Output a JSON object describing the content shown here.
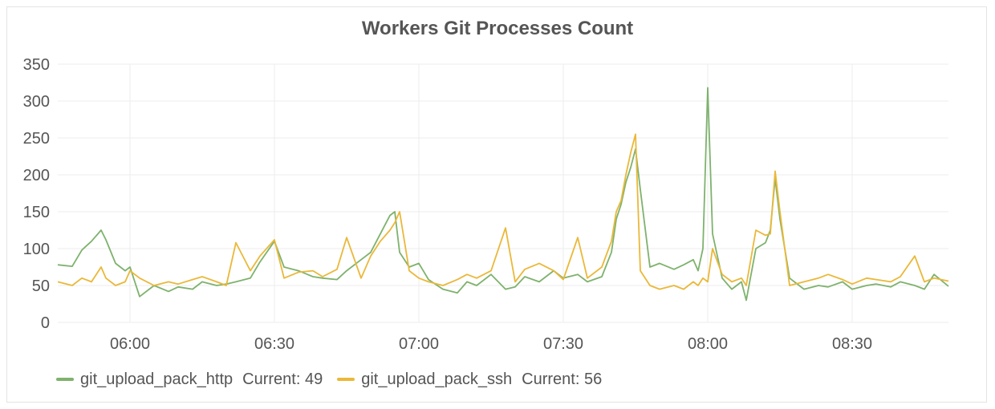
{
  "panel": {
    "title": "Workers Git Processes Count"
  },
  "legend": [
    {
      "name": "git_upload_pack_http",
      "current_label": "Current:",
      "current": "49",
      "color": "#7eb26d"
    },
    {
      "name": "git_upload_pack_ssh",
      "current_label": "Current:",
      "current": "56",
      "color": "#eab839"
    }
  ],
  "chart_data": {
    "type": "line",
    "title": "Workers Git Processes Count",
    "xlabel": "",
    "ylabel": "",
    "ylim": [
      0,
      350
    ],
    "xlim": [
      "05:45",
      "08:50"
    ],
    "yticks": [
      "0",
      "50",
      "100",
      "150",
      "200",
      "250",
      "300",
      "350"
    ],
    "xticks": [
      "06:00",
      "06:30",
      "07:00",
      "07:30",
      "08:00",
      "08:30"
    ],
    "grid": true,
    "legend_position": "bottom-left",
    "series": [
      {
        "name": "git_upload_pack_http",
        "color": "#7eb26d",
        "x": [
          "05:45",
          "05:48",
          "05:50",
          "05:52",
          "05:54",
          "05:55",
          "05:57",
          "05:59",
          "06:00",
          "06:02",
          "06:05",
          "06:08",
          "06:10",
          "06:13",
          "06:15",
          "06:18",
          "06:20",
          "06:22",
          "06:25",
          "06:27",
          "06:30",
          "06:32",
          "06:35",
          "06:38",
          "06:40",
          "06:43",
          "06:45",
          "06:48",
          "06:50",
          "06:52",
          "06:54",
          "06:55",
          "06:56",
          "06:58",
          "07:00",
          "07:02",
          "07:05",
          "07:08",
          "07:10",
          "07:12",
          "07:15",
          "07:18",
          "07:20",
          "07:22",
          "07:25",
          "07:28",
          "07:30",
          "07:33",
          "07:35",
          "07:38",
          "07:40",
          "07:41",
          "07:42",
          "07:43",
          "07:44",
          "07:45",
          "07:46",
          "07:48",
          "07:50",
          "07:53",
          "07:55",
          "07:57",
          "07:58",
          "07:59",
          "08:00",
          "08:01",
          "08:03",
          "08:05",
          "08:07",
          "08:08",
          "08:10",
          "08:12",
          "08:13",
          "08:14",
          "08:15",
          "08:17",
          "08:20",
          "08:23",
          "08:25",
          "08:28",
          "08:30",
          "08:33",
          "08:35",
          "08:38",
          "08:40",
          "08:43",
          "08:45",
          "08:47",
          "08:50"
        ],
        "values": [
          78,
          76,
          98,
          110,
          125,
          112,
          80,
          70,
          75,
          35,
          50,
          42,
          48,
          45,
          55,
          50,
          52,
          55,
          60,
          82,
          110,
          75,
          70,
          62,
          60,
          58,
          70,
          85,
          95,
          120,
          145,
          150,
          95,
          75,
          80,
          58,
          45,
          40,
          55,
          50,
          65,
          45,
          48,
          62,
          55,
          70,
          60,
          65,
          55,
          62,
          95,
          140,
          160,
          190,
          210,
          235,
          180,
          75,
          80,
          72,
          78,
          85,
          70,
          100,
          318,
          120,
          60,
          45,
          55,
          30,
          100,
          108,
          125,
          195,
          140,
          60,
          45,
          50,
          48,
          55,
          45,
          50,
          52,
          48,
          55,
          50,
          45,
          65,
          49
        ]
      },
      {
        "name": "git_upload_pack_ssh",
        "color": "#eab839",
        "x": [
          "05:45",
          "05:48",
          "05:50",
          "05:52",
          "05:54",
          "05:55",
          "05:57",
          "05:59",
          "06:00",
          "06:02",
          "06:05",
          "06:08",
          "06:10",
          "06:13",
          "06:15",
          "06:18",
          "06:20",
          "06:22",
          "06:25",
          "06:27",
          "06:30",
          "06:32",
          "06:35",
          "06:38",
          "06:40",
          "06:43",
          "06:45",
          "06:48",
          "06:50",
          "06:52",
          "06:54",
          "06:55",
          "06:56",
          "06:58",
          "07:00",
          "07:02",
          "07:05",
          "07:08",
          "07:10",
          "07:12",
          "07:15",
          "07:18",
          "07:20",
          "07:22",
          "07:25",
          "07:28",
          "07:30",
          "07:33",
          "07:35",
          "07:38",
          "07:40",
          "07:41",
          "07:42",
          "07:43",
          "07:44",
          "07:45",
          "07:46",
          "07:48",
          "07:50",
          "07:53",
          "07:55",
          "07:57",
          "07:58",
          "07:59",
          "08:00",
          "08:01",
          "08:03",
          "08:05",
          "08:07",
          "08:08",
          "08:10",
          "08:12",
          "08:13",
          "08:14",
          "08:15",
          "08:17",
          "08:20",
          "08:23",
          "08:25",
          "08:28",
          "08:30",
          "08:33",
          "08:35",
          "08:38",
          "08:40",
          "08:43",
          "08:45",
          "08:47",
          "08:50"
        ],
        "values": [
          55,
          50,
          60,
          55,
          75,
          60,
          50,
          55,
          70,
          60,
          50,
          55,
          52,
          58,
          62,
          55,
          50,
          108,
          70,
          90,
          112,
          60,
          68,
          70,
          62,
          72,
          115,
          60,
          90,
          110,
          125,
          135,
          150,
          70,
          60,
          55,
          50,
          58,
          65,
          60,
          70,
          128,
          55,
          72,
          80,
          70,
          58,
          115,
          60,
          75,
          110,
          150,
          165,
          200,
          230,
          255,
          70,
          50,
          45,
          50,
          45,
          55,
          50,
          60,
          55,
          100,
          65,
          55,
          60,
          50,
          125,
          118,
          120,
          205,
          150,
          50,
          55,
          60,
          65,
          58,
          52,
          60,
          58,
          55,
          62,
          90,
          55,
          60,
          56
        ]
      }
    ]
  }
}
